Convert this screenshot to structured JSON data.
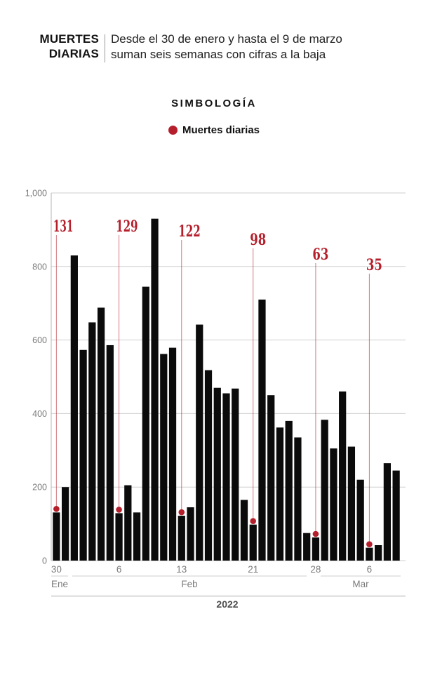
{
  "header": {
    "kicker_line1": "MUERTES",
    "kicker_line2": "DIARIAS",
    "desc_line1": "Desde el 30 de enero y hasta el 9 de marzo",
    "desc_line2": "suman seis semanas con cifras a la baja"
  },
  "legend": {
    "title": "SIMBOLOGÍA",
    "item_label": "Muertes diarias"
  },
  "chart_data": {
    "type": "bar",
    "x": [
      "Ene 30",
      "Ene 31",
      "Feb 1",
      "Feb 2",
      "Feb 3",
      "Feb 4",
      "Feb 5",
      "Feb 6",
      "Feb 7",
      "Feb 8",
      "Feb 9",
      "Feb 10",
      "Feb 11",
      "Feb 12",
      "Feb 13",
      "Feb 14",
      "Feb 15",
      "Feb 16",
      "Feb 17",
      "Feb 18",
      "Feb 19",
      "Feb 20",
      "Feb 21",
      "Feb 22",
      "Feb 23",
      "Feb 24",
      "Feb 25",
      "Feb 26",
      "Feb 27",
      "Feb 28",
      "Mar 1",
      "Mar 2",
      "Mar 3",
      "Mar 4",
      "Mar 5",
      "Mar 6",
      "Mar 7",
      "Mar 8",
      "Mar 9"
    ],
    "values": [
      131,
      200,
      830,
      573,
      648,
      688,
      586,
      129,
      205,
      131,
      745,
      930,
      562,
      579,
      122,
      145,
      642,
      518,
      470,
      455,
      468,
      165,
      98,
      710,
      450,
      362,
      380,
      335,
      75,
      63,
      383,
      305,
      460,
      310,
      220,
      35,
      42,
      265,
      245
    ],
    "ylim": [
      0,
      1000
    ],
    "yticks": [
      0,
      200,
      400,
      600,
      800,
      1000
    ],
    "ytick_labels": [
      "0",
      "200",
      "400",
      "600",
      "800",
      "1,000"
    ],
    "xticks": [
      {
        "index": 0,
        "label": "30"
      },
      {
        "index": 7,
        "label": "6"
      },
      {
        "index": 14,
        "label": "13"
      },
      {
        "index": 22,
        "label": "21"
      },
      {
        "index": 29,
        "label": "28"
      },
      {
        "index": 35,
        "label": "6"
      }
    ],
    "annotations": [
      {
        "index": 0,
        "label": "131",
        "label_top": 314
      },
      {
        "index": 7,
        "label": "129",
        "label_top": 314
      },
      {
        "index": 14,
        "label": "122",
        "label_top": 321
      },
      {
        "index": 22,
        "label": "98",
        "label_top": 333
      },
      {
        "index": 29,
        "label": "63",
        "label_top": 354
      },
      {
        "index": 35,
        "label": "35",
        "label_top": 369
      }
    ],
    "months": [
      {
        "label": "Ene",
        "first_index": 0,
        "last_index": 1
      },
      {
        "label": "Feb",
        "first_index": 2,
        "last_index": 29
      },
      {
        "label": "Mar",
        "first_index": 30,
        "last_index": 38
      }
    ],
    "year_label": "2022",
    "grid": true,
    "legend_position": "top",
    "bar_color": "#0b0b0b",
    "accent_color": "#b51f2b",
    "grid_color": "#cfcfcf",
    "axis_label_color": "#7b7b7b",
    "year_label_color": "#4d4d4d"
  }
}
